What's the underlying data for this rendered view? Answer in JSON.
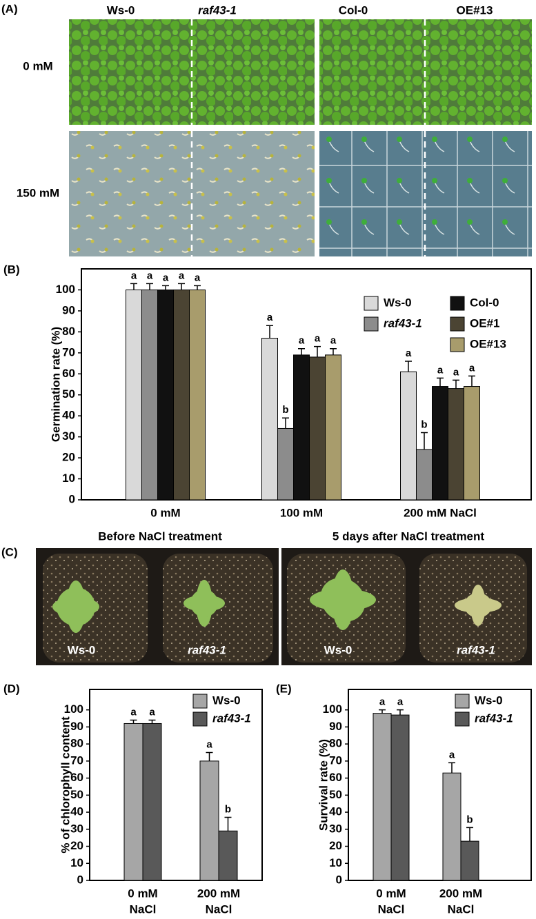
{
  "photo_panels": [
    {
      "label": "(A)",
      "column_headers": [
        "Ws-0",
        "raf43-1",
        "Col-0",
        "OE#13"
      ],
      "row_labels": [
        "0 mM",
        "150 mM"
      ]
    },
    {
      "label": "(C)",
      "headers": [
        "Before NaCl treatment",
        "5 days after NaCl treatment"
      ],
      "plant_labels": [
        "Ws-0",
        "raf43-1",
        "Ws-0",
        "raf43-1"
      ]
    }
  ],
  "chart_data": [
    {
      "type": "bar",
      "panel_label": "(B)",
      "y_label": "Germination rate (%)",
      "categories": [
        [
          "0 mM"
        ],
        [
          "100 mM"
        ],
        [
          "200 mM NaCl"
        ]
      ],
      "ylim": [
        0,
        110
      ],
      "yticks": [
        0,
        10,
        20,
        30,
        40,
        50,
        60,
        70,
        80,
        90,
        100
      ],
      "series": [
        {
          "name": "Ws-0",
          "color": "#d9d9d9",
          "values": [
            100,
            77,
            61
          ],
          "errors": [
            3,
            6,
            5
          ],
          "letters": [
            "a",
            "a",
            "a"
          ]
        },
        {
          "name": "raf43-1",
          "italic": true,
          "color": "#8c8c8c",
          "values": [
            100,
            34,
            24
          ],
          "errors": [
            3,
            5,
            8
          ],
          "letters": [
            "a",
            "b",
            "b"
          ]
        },
        {
          "name": "Col-0",
          "color": "#111111",
          "values": [
            100,
            69,
            54
          ],
          "errors": [
            2,
            3,
            4
          ],
          "letters": [
            "a",
            "a",
            "a"
          ]
        },
        {
          "name": "OE#1",
          "color": "#4b4433",
          "values": [
            100,
            68,
            53
          ],
          "errors": [
            3,
            5,
            4
          ],
          "letters": [
            "a",
            "a",
            "a"
          ]
        },
        {
          "name": "OE#13",
          "color": "#a89c6c",
          "values": [
            100,
            69,
            54
          ],
          "errors": [
            2,
            3,
            5
          ],
          "letters": [
            "a",
            "a",
            "a"
          ]
        }
      ]
    },
    {
      "type": "bar",
      "panel_label": "(D)",
      "y_label": "% of chlorophyll content",
      "categories": [
        [
          "0 mM",
          "NaCl"
        ],
        [
          "200 mM",
          "NaCl"
        ]
      ],
      "ylim": [
        0,
        112
      ],
      "yticks": [
        0,
        10,
        20,
        30,
        40,
        50,
        60,
        70,
        80,
        90,
        100
      ],
      "series": [
        {
          "name": "Ws-0",
          "color": "#a6a6a6",
          "values": [
            92,
            70
          ],
          "errors": [
            2,
            5
          ],
          "letters": [
            "a",
            "a"
          ]
        },
        {
          "name": "raf43-1",
          "italic": true,
          "color": "#595959",
          "values": [
            92,
            29
          ],
          "errors": [
            2,
            8
          ],
          "letters": [
            "a",
            "b"
          ]
        }
      ]
    },
    {
      "type": "bar",
      "panel_label": "(E)",
      "y_label": "Survival rate (%)",
      "categories": [
        [
          "0 mM",
          "NaCl"
        ],
        [
          "200 mM",
          "NaCl"
        ]
      ],
      "ylim": [
        0,
        112
      ],
      "yticks": [
        0,
        10,
        20,
        30,
        40,
        50,
        60,
        70,
        80,
        90,
        100
      ],
      "series": [
        {
          "name": "Ws-0",
          "color": "#a6a6a6",
          "values": [
            98,
            63
          ],
          "errors": [
            2,
            6
          ],
          "letters": [
            "a",
            "a"
          ]
        },
        {
          "name": "raf43-1",
          "italic": true,
          "color": "#595959",
          "values": [
            97,
            23
          ],
          "errors": [
            3,
            8
          ],
          "letters": [
            "a",
            "b"
          ]
        }
      ]
    }
  ]
}
